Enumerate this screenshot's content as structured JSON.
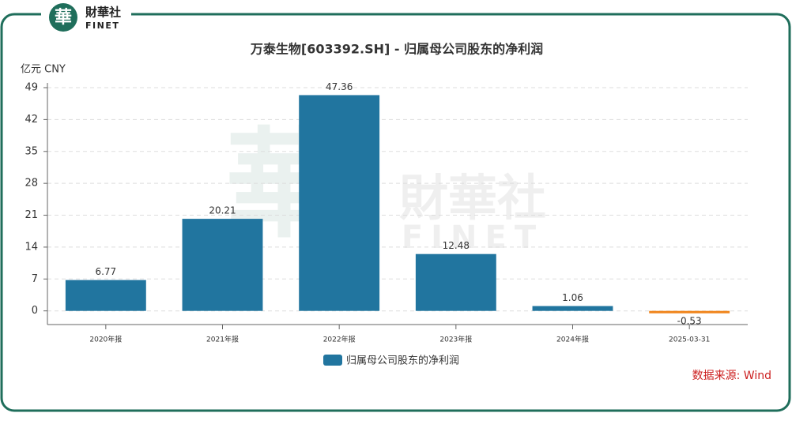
{
  "brand": {
    "icon": "華",
    "name": "財華社",
    "latin": "FINET"
  },
  "chart_data": {
    "type": "bar",
    "title": "万泰生物[603392.SH] - 归属母公司股东的净利润",
    "y_unit": "亿元  CNY",
    "categories": [
      "2020年报",
      "2021年报",
      "2022年报",
      "2023年报",
      "2024年报",
      "2025-03-31"
    ],
    "series": [
      {
        "name": "归属母公司股东的净利润",
        "color": "#21759f",
        "negative_color": "#f0861e",
        "values": [
          6.77,
          20.21,
          47.36,
          12.48,
          1.06,
          -0.53
        ]
      }
    ],
    "ylim": [
      -3,
      49
    ],
    "yticks": [
      0,
      7,
      14,
      21,
      28,
      35,
      42,
      49
    ],
    "grid": true,
    "source": "数据来源: Wind"
  }
}
